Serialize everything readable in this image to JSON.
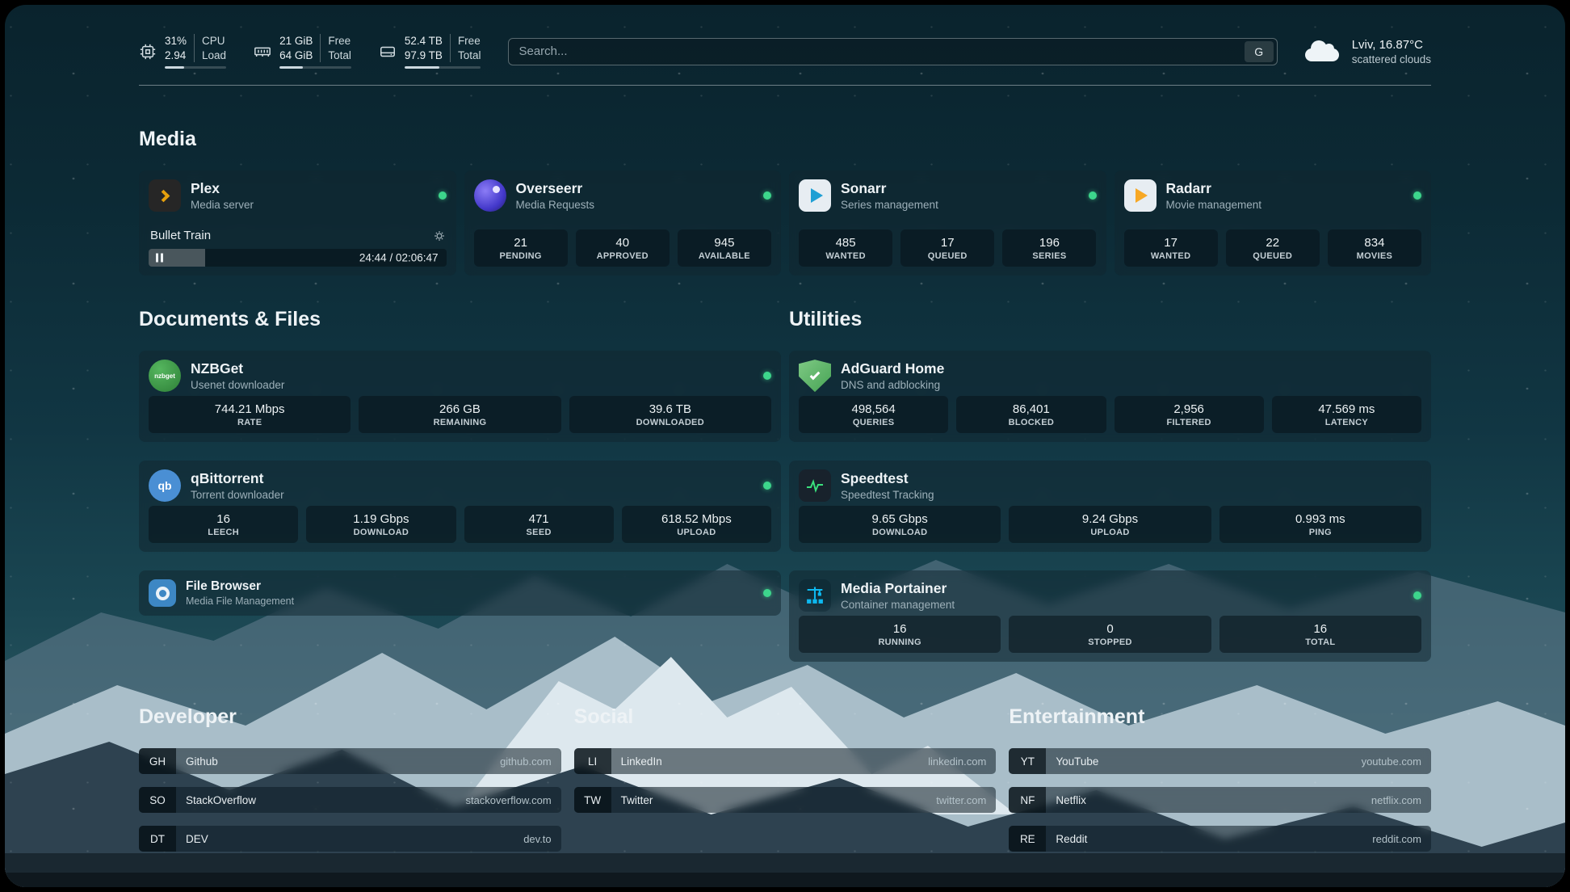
{
  "header": {
    "resources": [
      {
        "name": "cpu",
        "col1": [
          "31%",
          "2.94"
        ],
        "col2": [
          "CPU",
          "Load"
        ],
        "fill": 31
      },
      {
        "name": "memory",
        "col1": [
          "21 GiB",
          "64 GiB"
        ],
        "col2": [
          "Free",
          "Total"
        ],
        "fill": 33
      },
      {
        "name": "disk",
        "col1": [
          "52.4 TB",
          "97.9 TB"
        ],
        "col2": [
          "Free",
          "Total"
        ],
        "fill": 46
      }
    ],
    "search": {
      "placeholder": "Search...",
      "provider_button": "G"
    },
    "weather": {
      "location": "Lviv, 16.87°C",
      "condition": "scattered clouds"
    }
  },
  "section_titles": {
    "media": "Media",
    "documents": "Documents & Files",
    "utilities": "Utilities",
    "developer": "Developer",
    "social": "Social",
    "entertainment": "Entertainment"
  },
  "services": {
    "plex": {
      "name": "Plex",
      "desc": "Media server",
      "now_playing": "Bullet Train",
      "elapsed_total": "24:44 / 02:06:47",
      "progress": 19
    },
    "overseerr": {
      "name": "Overseerr",
      "desc": "Media Requests",
      "stats": [
        {
          "value": "21",
          "label": "PENDING"
        },
        {
          "value": "40",
          "label": "APPROVED"
        },
        {
          "value": "945",
          "label": "AVAILABLE"
        }
      ]
    },
    "sonarr": {
      "name": "Sonarr",
      "desc": "Series management",
      "stats": [
        {
          "value": "485",
          "label": "WANTED"
        },
        {
          "value": "17",
          "label": "QUEUED"
        },
        {
          "value": "196",
          "label": "SERIES"
        }
      ]
    },
    "radarr": {
      "name": "Radarr",
      "desc": "Movie management",
      "stats": [
        {
          "value": "17",
          "label": "WANTED"
        },
        {
          "value": "22",
          "label": "QUEUED"
        },
        {
          "value": "834",
          "label": "MOVIES"
        }
      ]
    },
    "nzbget": {
      "name": "NZBGet",
      "desc": "Usenet downloader",
      "stats": [
        {
          "value": "744.21 Mbps",
          "label": "RATE"
        },
        {
          "value": "266 GB",
          "label": "REMAINING"
        },
        {
          "value": "39.6 TB",
          "label": "DOWNLOADED"
        }
      ]
    },
    "qbittorrent": {
      "name": "qBittorrent",
      "desc": "Torrent downloader",
      "stats": [
        {
          "value": "16",
          "label": "LEECH"
        },
        {
          "value": "1.19 Gbps",
          "label": "DOWNLOAD"
        },
        {
          "value": "471",
          "label": "SEED"
        },
        {
          "value": "618.52 Mbps",
          "label": "UPLOAD"
        }
      ]
    },
    "filebrowser": {
      "name": "File Browser",
      "desc": "Media File Management"
    },
    "adguard": {
      "name": "AdGuard Home",
      "desc": "DNS and adblocking",
      "stats": [
        {
          "value": "498,564",
          "label": "QUERIES"
        },
        {
          "value": "86,401",
          "label": "BLOCKED"
        },
        {
          "value": "2,956",
          "label": "FILTERED"
        },
        {
          "value": "47.569 ms",
          "label": "LATENCY"
        }
      ]
    },
    "speedtest": {
      "name": "Speedtest",
      "desc": "Speedtest Tracking",
      "stats": [
        {
          "value": "9.65 Gbps",
          "label": "DOWNLOAD"
        },
        {
          "value": "9.24 Gbps",
          "label": "UPLOAD"
        },
        {
          "value": "0.993 ms",
          "label": "PING"
        }
      ]
    },
    "portainer": {
      "name": "Media Portainer",
      "desc": "Container management",
      "stats": [
        {
          "value": "16",
          "label": "RUNNING"
        },
        {
          "value": "0",
          "label": "STOPPED"
        },
        {
          "value": "16",
          "label": "TOTAL"
        }
      ]
    }
  },
  "icon_text": {
    "nzbget": "nzbget",
    "qbittorrent": "qb"
  },
  "bookmarks": {
    "developer": [
      {
        "abbr": "GH",
        "name": "Github",
        "href": "github.com"
      },
      {
        "abbr": "SO",
        "name": "StackOverflow",
        "href": "stackoverflow.com"
      },
      {
        "abbr": "DT",
        "name": "DEV",
        "href": "dev.to"
      }
    ],
    "social": [
      {
        "abbr": "LI",
        "name": "LinkedIn",
        "href": "linkedin.com"
      },
      {
        "abbr": "TW",
        "name": "Twitter",
        "href": "twitter.com"
      }
    ],
    "entertainment": [
      {
        "abbr": "YT",
        "name": "YouTube",
        "href": "youtube.com"
      },
      {
        "abbr": "NF",
        "name": "Netflix",
        "href": "netflix.com"
      },
      {
        "abbr": "RE",
        "name": "Reddit",
        "href": "reddit.com"
      }
    ]
  },
  "colors": {
    "status_online": "#3dd68c",
    "plex_accent": "#e5a00d",
    "sonarr_accent": "#1f9fd4",
    "radarr_accent": "#f7a825",
    "overseerr_accent": "#4f46e5",
    "nzbget_accent": "#3faa4e",
    "qbittorrent_accent": "#4a8fd4",
    "filebrowser_accent": "#3d87c4",
    "adguard_accent": "#5fb36a",
    "speedtest_wave": "#3ae07d",
    "portainer_accent": "#0db9f0"
  }
}
